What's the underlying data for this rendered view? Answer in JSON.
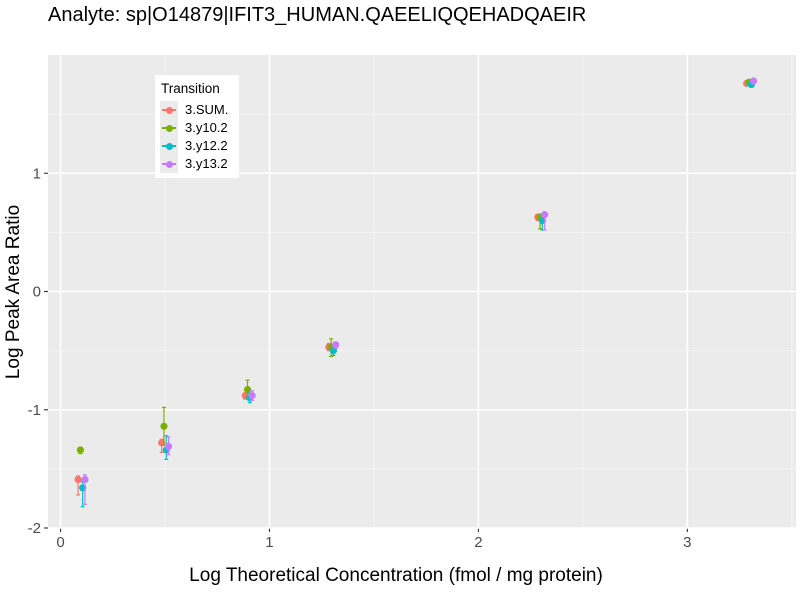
{
  "chart_data": {
    "type": "scatter",
    "title": "Analyte: sp|O14879|IFIT3_HUMAN.QAEELIQQEHADQAEIR",
    "xlabel": "Log Theoretical Concentration (fmol / mg protein)",
    "ylabel": "Log Peak Area Ratio",
    "xlim": [
      -0.06,
      3.52
    ],
    "ylim": [
      -2.0,
      2.0
    ],
    "x_ticks": [
      0,
      1,
      2,
      3
    ],
    "x_tick_labels": [
      "0",
      "1",
      "2",
      "3"
    ],
    "y_ticks": [
      -2,
      -1,
      0,
      1
    ],
    "y_tick_labels": [
      "-2",
      "-1",
      "0",
      "1"
    ],
    "grid": true,
    "legend": {
      "title": "Transition",
      "position": "top-left"
    },
    "error_bars": true,
    "series": [
      {
        "name": "3.SUM.",
        "color": "#F8766D",
        "x": [
          0.1,
          0.5,
          0.9,
          1.3,
          2.3,
          3.3
        ],
        "y": [
          -1.59,
          -1.28,
          -0.88,
          -0.47,
          0.63,
          1.76
        ],
        "err_low": [
          -1.72,
          -1.36,
          -0.91,
          -0.5,
          0.6,
          1.74
        ],
        "err_high": [
          -1.56,
          -1.25,
          -0.86,
          -0.44,
          0.65,
          1.78
        ]
      },
      {
        "name": "3.y10.2",
        "color": "#7CAE00",
        "x": [
          0.1,
          0.5,
          0.9,
          1.3,
          2.3,
          3.3
        ],
        "y": [
          -1.34,
          -1.14,
          -0.83,
          -0.47,
          0.63,
          1.77
        ],
        "err_low": [
          -1.37,
          -1.3,
          -0.9,
          -0.55,
          0.53,
          1.75
        ],
        "err_high": [
          -1.33,
          -0.98,
          -0.75,
          -0.4,
          0.64,
          1.78
        ]
      },
      {
        "name": "3.y12.2",
        "color": "#00BFC4",
        "x": [
          0.1,
          0.5,
          0.9,
          1.3,
          2.3,
          3.3
        ],
        "y": [
          -1.66,
          -1.34,
          -0.9,
          -0.5,
          0.6,
          1.75
        ],
        "err_low": [
          -1.82,
          -1.42,
          -0.94,
          -0.54,
          0.52,
          1.73
        ],
        "err_high": [
          -1.61,
          -1.22,
          -0.86,
          -0.45,
          0.65,
          1.77
        ]
      },
      {
        "name": "3.y13.2",
        "color": "#C77CFF",
        "x": [
          0.1,
          0.5,
          0.9,
          1.3,
          2.3,
          3.3
        ],
        "y": [
          -1.59,
          -1.31,
          -0.88,
          -0.45,
          0.65,
          1.78
        ],
        "err_low": [
          -1.8,
          -1.38,
          -0.92,
          -0.48,
          0.52,
          1.76
        ],
        "err_high": [
          -1.55,
          -1.23,
          -0.84,
          -0.43,
          0.66,
          1.8
        ]
      }
    ]
  }
}
